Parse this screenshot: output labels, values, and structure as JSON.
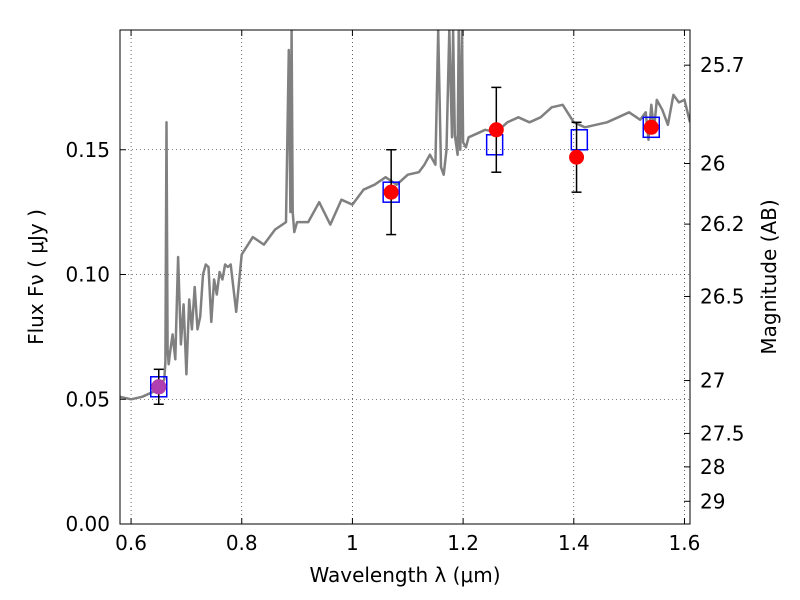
{
  "chart_data": {
    "type": "scatter",
    "title": "",
    "xlabel": "Wavelength  λ (μm)",
    "ylabel": "Flux  Fν  ( μJy )",
    "y2label": "Magnitude (AB)",
    "xlim": [
      0.58,
      1.61
    ],
    "ylim": [
      0.0,
      0.198
    ],
    "grid": true,
    "x_ticks": [
      {
        "value": 0.6,
        "label": "0.6"
      },
      {
        "value": 0.8,
        "label": "0.8"
      },
      {
        "value": 1.0,
        "label": "1"
      },
      {
        "value": 1.2,
        "label": "1.2"
      },
      {
        "value": 1.4,
        "label": "1.4"
      },
      {
        "value": 1.6,
        "label": "1.6"
      }
    ],
    "y_ticks": [
      {
        "value": 0.0,
        "label": "0.00"
      },
      {
        "value": 0.05,
        "label": "0.05"
      },
      {
        "value": 0.1,
        "label": "0.10"
      },
      {
        "value": 0.15,
        "label": "0.15"
      }
    ],
    "y2_ticks": [
      {
        "flux": 0.1839,
        "label": "25.7"
      },
      {
        "flux": 0.1445,
        "label": "26"
      },
      {
        "flux": 0.1202,
        "label": "26.2"
      },
      {
        "flux": 0.0912,
        "label": "26.5"
      },
      {
        "flux": 0.0575,
        "label": "27"
      },
      {
        "flux": 0.0363,
        "label": "27.5"
      },
      {
        "flux": 0.0229,
        "label": "28"
      },
      {
        "flux": 0.0091,
        "label": "29"
      }
    ],
    "model_spectrum": {
      "color": "#808080",
      "x": [
        0.58,
        0.6,
        0.62,
        0.64,
        0.655,
        0.66,
        0.662,
        0.664,
        0.666,
        0.668,
        0.67,
        0.675,
        0.68,
        0.685,
        0.69,
        0.695,
        0.7,
        0.705,
        0.71,
        0.715,
        0.72,
        0.725,
        0.73,
        0.735,
        0.74,
        0.745,
        0.75,
        0.755,
        0.76,
        0.765,
        0.77,
        0.775,
        0.78,
        0.79,
        0.8,
        0.82,
        0.84,
        0.86,
        0.88,
        0.885,
        0.888,
        0.89,
        0.892,
        0.895,
        0.9,
        0.92,
        0.94,
        0.96,
        0.98,
        1.0,
        1.02,
        1.04,
        1.06,
        1.08,
        1.1,
        1.12,
        1.13,
        1.14,
        1.15,
        1.155,
        1.16,
        1.165,
        1.17,
        1.175,
        1.18,
        1.182,
        1.185,
        1.19,
        1.192,
        1.195,
        1.198,
        1.2,
        1.205,
        1.21,
        1.22,
        1.24,
        1.26,
        1.28,
        1.3,
        1.32,
        1.34,
        1.36,
        1.38,
        1.4,
        1.42,
        1.44,
        1.46,
        1.48,
        1.5,
        1.52,
        1.53,
        1.535,
        1.54,
        1.545,
        1.55,
        1.56,
        1.57,
        1.58,
        1.59,
        1.6,
        1.61
      ],
      "y": [
        0.051,
        0.05,
        0.051,
        0.053,
        0.056,
        0.058,
        0.065,
        0.161,
        0.07,
        0.064,
        0.068,
        0.076,
        0.066,
        0.107,
        0.072,
        0.088,
        0.06,
        0.09,
        0.078,
        0.095,
        0.078,
        0.083,
        0.1,
        0.104,
        0.103,
        0.081,
        0.098,
        0.092,
        0.101,
        0.098,
        0.104,
        0.103,
        0.104,
        0.085,
        0.108,
        0.115,
        0.112,
        0.118,
        0.121,
        0.19,
        0.125,
        0.198,
        0.125,
        0.117,
        0.121,
        0.121,
        0.129,
        0.12,
        0.13,
        0.128,
        0.134,
        0.136,
        0.139,
        0.136,
        0.14,
        0.141,
        0.144,
        0.148,
        0.144,
        0.198,
        0.143,
        0.14,
        0.15,
        0.198,
        0.155,
        0.198,
        0.156,
        0.148,
        0.198,
        0.15,
        0.198,
        0.153,
        0.151,
        0.155,
        0.156,
        0.158,
        0.157,
        0.161,
        0.163,
        0.161,
        0.163,
        0.167,
        0.168,
        0.161,
        0.159,
        0.16,
        0.161,
        0.163,
        0.165,
        0.162,
        0.165,
        0.154,
        0.168,
        0.158,
        0.17,
        0.166,
        0.16,
        0.172,
        0.169,
        0.17,
        0.161
      ]
    },
    "series": [
      {
        "marker": "filled-circle",
        "color": "#ff0000",
        "x": [
          0.65,
          1.07,
          1.26,
          1.405,
          1.54
        ],
        "y": [
          0.055,
          0.133,
          0.158,
          0.147,
          0.159
        ],
        "y_err": [
          0.007,
          0.017,
          0.017,
          0.014,
          0.0
        ]
      },
      {
        "marker": "open-square",
        "color": "#0000ff",
        "x": [
          0.65,
          1.07,
          1.257,
          1.41,
          1.54
        ],
        "y": [
          0.055,
          0.133,
          0.152,
          0.154,
          0.159
        ]
      }
    ],
    "overlap_marker": {
      "x": 0.65,
      "y": 0.055,
      "color": "#b040b0"
    }
  }
}
